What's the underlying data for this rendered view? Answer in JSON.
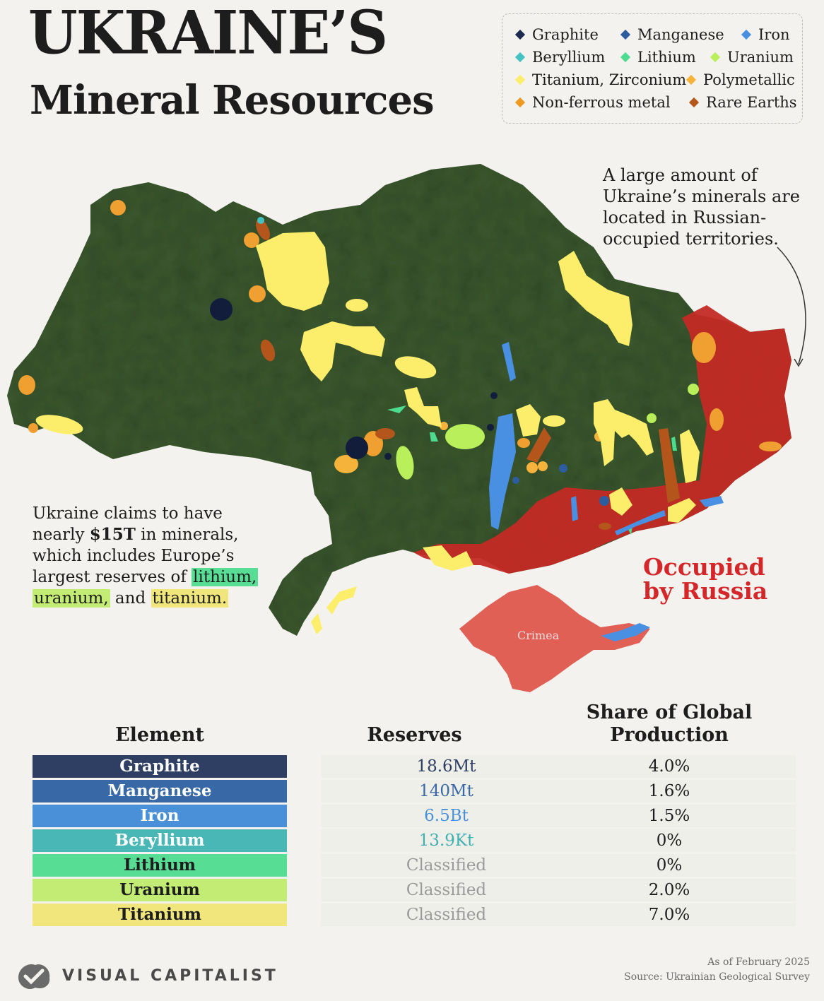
{
  "title_line1": "UKRAINE’S",
  "title_line2": "Mineral Resources",
  "legend": [
    {
      "label": "Graphite",
      "color": "#1c2a4f"
    },
    {
      "label": "Manganese",
      "color": "#2d5d9f"
    },
    {
      "label": "Iron",
      "color": "#4a90e2"
    },
    {
      "label": "Beryllium",
      "color": "#45c1c1"
    },
    {
      "label": "Lithium",
      "color": "#4ddc8f"
    },
    {
      "label": "Uranium",
      "color": "#b8ef5a"
    },
    {
      "label": "Titanium, Zirconium",
      "color": "#fcee6a"
    },
    {
      "label": "Polymetallic",
      "color": "#f6b33c"
    },
    {
      "label": "Non-ferrous metal",
      "color": "#ee9a22"
    },
    {
      "label": "Rare Earths",
      "color": "#b4561c"
    }
  ],
  "map": {
    "occupied_note": "A large amount of Ukraine’s minerals are located in Russian-occupied territories.",
    "occupied_label_line1": "Occupied",
    "occupied_label_line2": "by Russia",
    "crimea_label": "Crimea",
    "colors": {
      "land": "#3e5a33",
      "occupied": "#c32a25",
      "crimea": "#e06056"
    }
  },
  "claim": {
    "text1": "Ukraine claims to have nearly ",
    "amount": "$15T",
    "text2": " in minerals, which includes Europe’s largest reserves of ",
    "lithium": "lithium,",
    "uranium": "uranium,",
    "and": " and ",
    "titanium": "titanium."
  },
  "table": {
    "headers": {
      "element": "Element",
      "reserves": "Reserves",
      "share_line1": "Share of Global",
      "share_line2": "Production"
    },
    "rows": [
      {
        "element": "Graphite",
        "reserves": "18.6Mt",
        "share": "4.0%",
        "bg": "#2e3f63",
        "fg": "#ffffff",
        "res_color": "#2e3f63"
      },
      {
        "element": "Manganese",
        "reserves": "140Mt",
        "share": "1.6%",
        "bg": "#3868a6",
        "fg": "#ffffff",
        "res_color": "#3868a6"
      },
      {
        "element": "Iron",
        "reserves": "6.5Bt",
        "share": "1.5%",
        "bg": "#4a90d9",
        "fg": "#ffffff",
        "res_color": "#4a90d9"
      },
      {
        "element": "Beryllium",
        "reserves": "13.9Kt",
        "share": "0%",
        "bg": "#4ab7b7",
        "fg": "#ffffff",
        "res_color": "#3fb0b0"
      },
      {
        "element": "Lithium",
        "reserves": "Classified",
        "share": "0%",
        "bg": "#57dd94",
        "fg": "#1d1d1d",
        "res_color": "#9a9a9a"
      },
      {
        "element": "Uranium",
        "reserves": "Classified",
        "share": "2.0%",
        "bg": "#c2ec73",
        "fg": "#1d1d1d",
        "res_color": "#9a9a9a"
      },
      {
        "element": "Titanium",
        "reserves": "Classified",
        "share": "7.0%",
        "bg": "#f0e67c",
        "fg": "#1d1d1d",
        "res_color": "#9a9a9a"
      }
    ]
  },
  "footer": {
    "brand": "VISUAL CAPITALIST",
    "date": "As of February 2025",
    "source": "Source: Ukrainian Geological Survey"
  }
}
